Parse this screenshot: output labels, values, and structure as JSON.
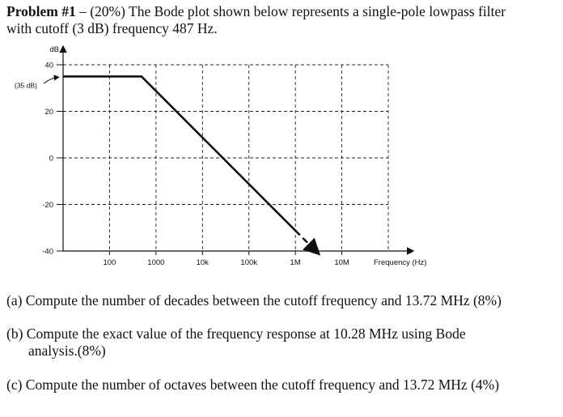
{
  "problem": {
    "label": "Problem #1",
    "text_line1": " – (20%) The Bode plot shown below represents a single-pole lowpass filter",
    "text_line2": "with cutoff (3 dB) frequency 487 Hz."
  },
  "chart_data": {
    "type": "line",
    "title": "",
    "xlabel": "Frequency (Hz)",
    "ylabel": "dB",
    "xscale": "log",
    "x_tick_labels": [
      "100",
      "1000",
      "10k",
      "100k",
      "1M",
      "10M"
    ],
    "x_ticks": [
      100,
      1000,
      10000,
      100000,
      1000000,
      10000000
    ],
    "y_tick_labels": [
      "40",
      "20",
      "0",
      "-20",
      "-40"
    ],
    "y_ticks": [
      40,
      20,
      0,
      -20,
      -40
    ],
    "xlim": [
      10,
      100000000
    ],
    "ylim": [
      -40,
      40
    ],
    "grid": true,
    "annotation": "(35 dB)",
    "series": [
      {
        "style": "solid",
        "x": [
          10,
          487,
          1000000
        ],
        "y": [
          35,
          35,
          -31.2
        ]
      },
      {
        "style": "dashed-arrow",
        "x": [
          1000000,
          3000000
        ],
        "y": [
          -31.2,
          -40.7
        ]
      }
    ]
  },
  "questions": {
    "a": "(a) Compute the number of decades between the cutoff frequency and 13.72 MHz  (8%)",
    "b_line1": "(b) Compute the exact value of the frequency response at 10.28 MHz using Bode",
    "b_line2": "analysis.(8%)",
    "c": "(c) Compute the number of octaves between the cutoff frequency and 13.72 MHz  (4%)"
  }
}
